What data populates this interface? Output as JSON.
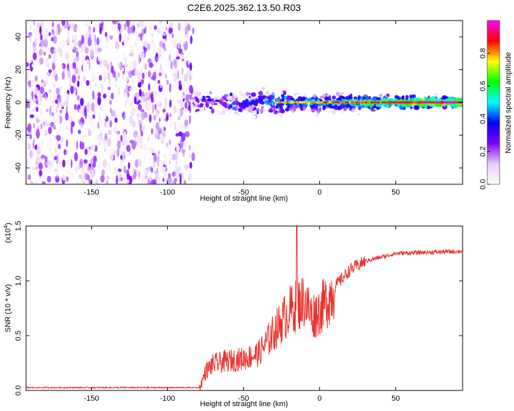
{
  "title": "C2E6.2025.362.13.50.R03",
  "chart_data": [
    {
      "type": "heatmap",
      "name": "spectrogram",
      "xlabel": "Height of straight line (km)",
      "ylabel": "Frequency (Hz)",
      "xlim": [
        -193,
        94
      ],
      "ylim": [
        -50,
        50
      ],
      "xticks": [
        -150,
        -100,
        -50,
        0,
        50
      ],
      "xtick_labels": [
        "-150",
        "-100",
        "-50",
        "0",
        "50"
      ],
      "yticks": [
        -40,
        -20,
        0,
        20,
        40
      ],
      "ytick_labels": [
        "-40",
        "-20",
        "0",
        "20",
        "40"
      ],
      "noise_region_x": [
        -193,
        -83
      ],
      "signal_center_frequency": 0,
      "signal_start_x": -83,
      "colorbar": {
        "label": "Normalized spectral amplitude",
        "ticks": [
          0.0,
          0.2,
          0.4,
          0.6,
          0.8
        ],
        "tick_labels": [
          "0.0",
          "0.2",
          "0.4",
          "0.6",
          "0.8"
        ],
        "range": [
          0,
          1
        ],
        "colors": [
          "#ffffff",
          "#e6ccf5",
          "#8000ff",
          "#0000ff",
          "#00ffff",
          "#00ff00",
          "#ffff00",
          "#ff0000",
          "#ff00ff"
        ]
      }
    },
    {
      "type": "line",
      "name": "snr",
      "xlabel": "Height of straight line (km)",
      "ylabel": "SNR (10 * v/v)",
      "scale_label": "(x10",
      "scale_exponent": "4",
      "scale_close": ")",
      "xlim": [
        -193,
        94
      ],
      "ylim": [
        0,
        1.5
      ],
      "xticks": [
        -150,
        -100,
        -50,
        0,
        50
      ],
      "xtick_labels": [
        "-150",
        "-100",
        "-50",
        "0",
        "50"
      ],
      "yticks": [
        0.0,
        0.5,
        1.0,
        1.5
      ],
      "ytick_labels": [
        "0.0",
        "0.5",
        "1.0",
        "1.5"
      ],
      "color": "#e8302a",
      "series": [
        {
          "name": "SNR",
          "x": [
            -193,
            -170,
            -150,
            -120,
            -90,
            -79,
            -75,
            -70,
            -60,
            -50,
            -40,
            -30,
            -20,
            -15,
            -10,
            -5,
            0,
            10,
            20,
            30,
            50,
            70,
            94
          ],
          "y": [
            0.02,
            0.02,
            0.02,
            0.02,
            0.02,
            0.02,
            0.18,
            0.25,
            0.28,
            0.3,
            0.35,
            0.55,
            0.75,
            0.8,
            0.85,
            0.7,
            0.75,
            0.95,
            1.1,
            1.18,
            1.25,
            1.26,
            1.27
          ]
        }
      ],
      "spike": {
        "x": -15,
        "y": 1.5
      }
    }
  ]
}
